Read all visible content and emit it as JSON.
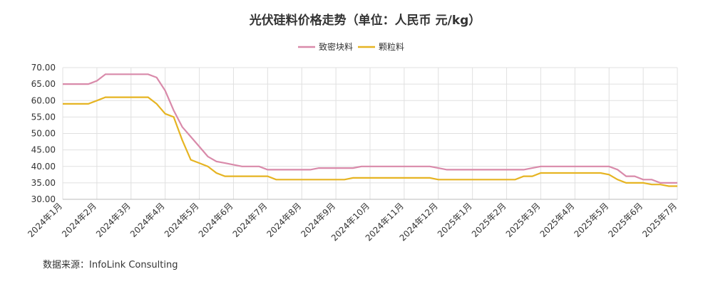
{
  "chart_data": {
    "type": "line",
    "title": "光伏硅料价格走势（单位：人民币 元/kg）",
    "source": "数据来源：InfoLink Consulting",
    "categories": [
      "2024年1月",
      null,
      null,
      null,
      "2024年2月",
      null,
      null,
      null,
      "2024年3月",
      null,
      null,
      null,
      "2024年4月",
      null,
      null,
      null,
      "2024年5月",
      null,
      null,
      null,
      "2024年6月",
      null,
      null,
      null,
      "2024年7月",
      null,
      null,
      null,
      "2024年8月",
      null,
      null,
      null,
      "2024年9月",
      null,
      null,
      null,
      "2024年10月",
      null,
      null,
      null,
      "2024年11月",
      null,
      null,
      null,
      "2024年12月",
      null,
      null,
      null,
      "2025年1月",
      null,
      null,
      null,
      "2025年2月",
      null,
      null,
      null,
      "2025年3月",
      null,
      null,
      null,
      "2025年4月",
      null,
      null,
      null,
      "2025年5月",
      null,
      null,
      null,
      "2025年6月",
      null,
      null,
      null,
      "2025年7月"
    ],
    "series": [
      {
        "name": "致密块料",
        "color": "#d98aaa",
        "values": [
          65,
          65,
          65,
          65,
          66,
          68,
          68,
          68,
          68,
          68,
          68,
          67,
          63,
          57,
          52,
          49,
          46,
          43,
          41.5,
          41,
          40.5,
          40,
          40,
          40,
          39,
          39,
          39,
          39,
          39,
          39,
          39.5,
          39.5,
          39.5,
          39.5,
          39.5,
          40,
          40,
          40,
          40,
          40,
          40,
          40,
          40,
          40,
          39.5,
          39,
          39,
          39,
          39,
          39,
          39,
          39,
          39,
          39,
          39,
          39.5,
          40,
          40,
          40,
          40,
          40,
          40,
          40,
          40,
          40,
          39,
          37,
          37,
          36,
          36,
          35,
          35,
          35
        ]
      },
      {
        "name": "颗粒料",
        "color": "#e6b422",
        "values": [
          59,
          59,
          59,
          59,
          60,
          61,
          61,
          61,
          61,
          61,
          61,
          59,
          56,
          55,
          48,
          42,
          41,
          40,
          38,
          37,
          37,
          37,
          37,
          37,
          37,
          36,
          36,
          36,
          36,
          36,
          36,
          36,
          36,
          36,
          36.5,
          36.5,
          36.5,
          36.5,
          36.5,
          36.5,
          36.5,
          36.5,
          36.5,
          36.5,
          36,
          36,
          36,
          36,
          36,
          36,
          36,
          36,
          36,
          36,
          37,
          37,
          38,
          38,
          38,
          38,
          38,
          38,
          38,
          38,
          37.5,
          36,
          35,
          35,
          35,
          34.5,
          34.5,
          34,
          34
        ]
      }
    ],
    "ylim": [
      30,
      70
    ],
    "yticks": [
      {
        "value": 30,
        "label": "30.00"
      },
      {
        "value": 35,
        "label": "35.00"
      },
      {
        "value": 40,
        "label": "40.00"
      },
      {
        "value": 45,
        "label": "45.00"
      },
      {
        "value": 50,
        "label": "50.00"
      },
      {
        "value": 55,
        "label": "55.00"
      },
      {
        "value": 60,
        "label": "60.00"
      },
      {
        "value": 65,
        "label": "65.00"
      },
      {
        "value": 70,
        "label": "70.00"
      }
    ],
    "grid": true
  }
}
